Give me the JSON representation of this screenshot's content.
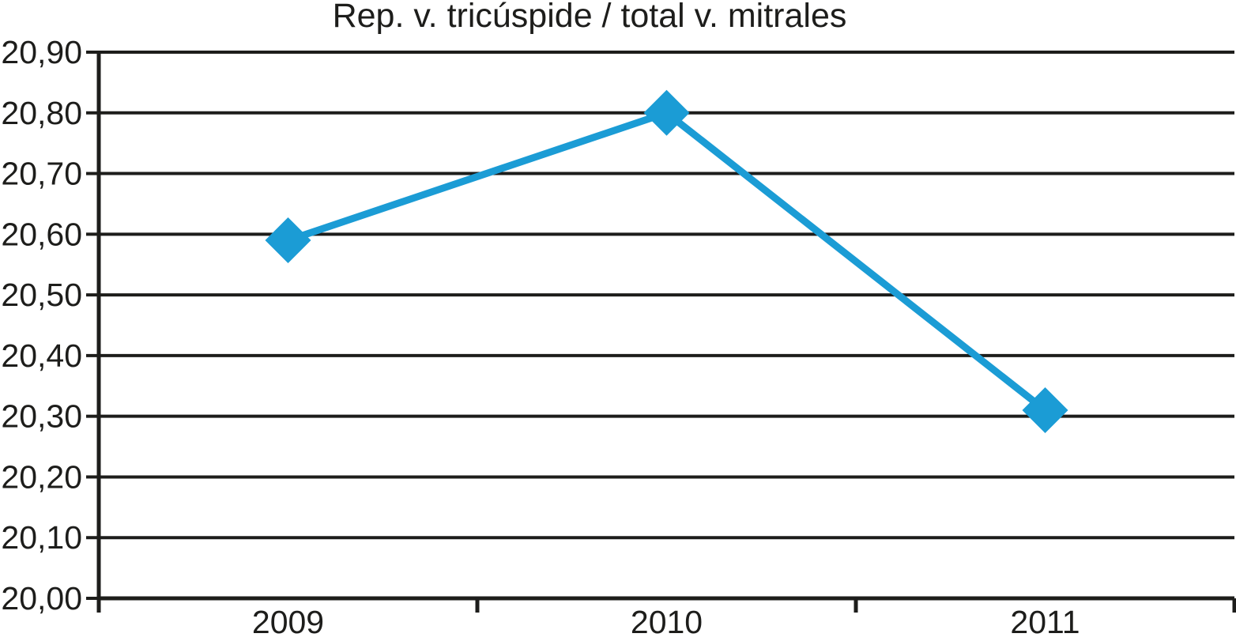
{
  "chart_data": {
    "type": "line",
    "title": "Rep. v. tricúspide / total v. mitrales",
    "categories": [
      "2009",
      "2010",
      "2011"
    ],
    "series": [
      {
        "name": "Rep. v. tricúspide / total v. mitrales",
        "values": [
          20.59,
          20.8,
          20.31
        ]
      }
    ],
    "xlabel": "",
    "ylabel": "",
    "ylim": [
      20.0,
      20.9
    ],
    "ytick_step": 0.1,
    "ytick_labels": [
      "20,00",
      "20,10",
      "20,20",
      "20,30",
      "20,40",
      "20,50",
      "20,60",
      "20,70",
      "20,80",
      "20,90"
    ],
    "decimal_separator": ",",
    "grid": "horizontal",
    "legend_position": "none",
    "marker": "diamond",
    "line_color": "#1b9cd5",
    "axis_color": "#1d1d1b",
    "background_color": "#ffffff"
  }
}
